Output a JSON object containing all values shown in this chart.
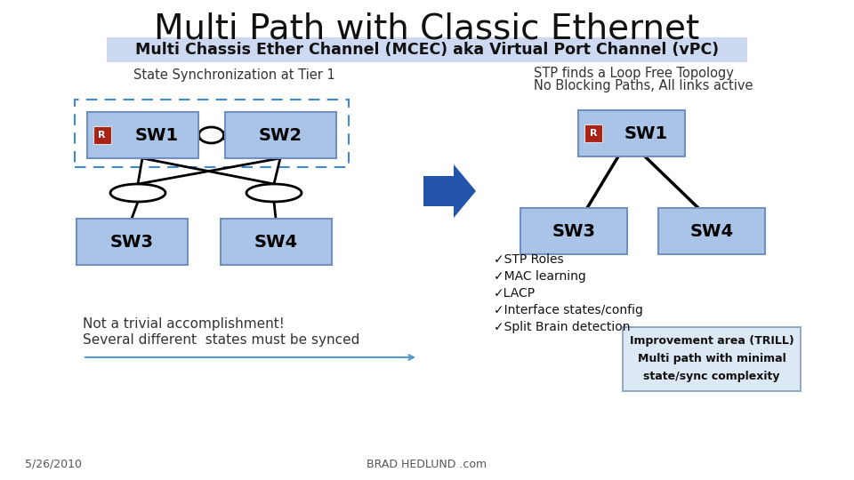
{
  "title": "Multi Path with Classic Ethernet",
  "subtitle": "Multi Chassis Ether Channel (MCEC) aka Virtual Port Channel (vPC)",
  "subtitle_bg": "#ccd9f0",
  "bg_color": "#ffffff",
  "left_caption": "State Synchronization at Tier 1",
  "right_caption_line1": "STP finds a Loop Free Topology",
  "right_caption_line2": "No Blocking Paths, All links active",
  "bottom_left_text_line1": "Not a trivial accomplishment!",
  "bottom_left_text_line2": "Several different  states must be synced",
  "checklist": [
    "✓STP Roles",
    "✓MAC learning",
    "✓LACP",
    "✓Interface states/config",
    "✓Split Brain detection"
  ],
  "footer_left": "5/26/2010",
  "footer_center": "BRAD HEDLUND .com",
  "switch_box_color": "#aac4e8",
  "switch_box_edge": "#7090c0",
  "switch_text_color": "#000000",
  "r_icon_bg": "#aa2215",
  "dashed_rect_color": "#4488cc",
  "arrow_color": "#2255aa",
  "improvement_bg": "#dde8f5",
  "improvement_edge": "#8099bb"
}
